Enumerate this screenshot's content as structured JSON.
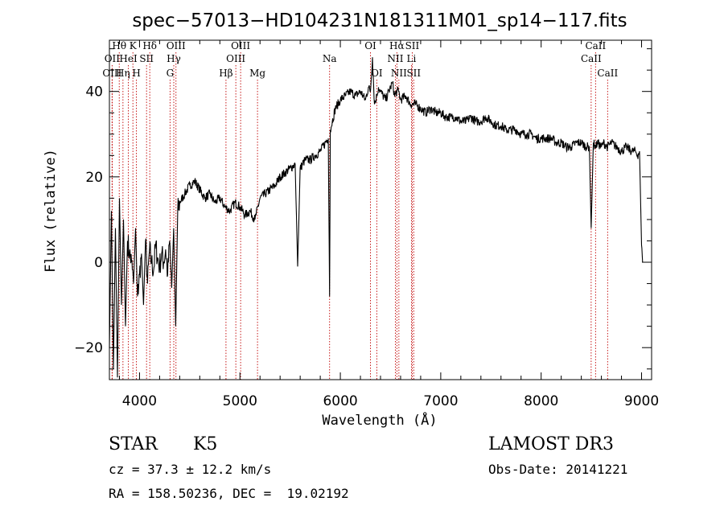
{
  "chart_data": {
    "type": "line",
    "title": "spec−57013−HD104231N181311M01_sp14−117.fits",
    "xlabel": "Wavelength (Å)",
    "ylabel": "Flux (relative)",
    "xlim": [
      3700,
      9100
    ],
    "ylim": [
      -27.5,
      52
    ],
    "xticks": [
      4000,
      5000,
      6000,
      7000,
      8000,
      9000
    ],
    "yticks": [
      -20,
      0,
      20,
      40
    ],
    "grid": false,
    "series": [
      {
        "x": [
          3700,
          3720,
          3740,
          3760,
          3780,
          3800,
          3820,
          3840,
          3860,
          3880,
          3900,
          3920,
          3940,
          3960,
          3980,
          4000,
          4020,
          4040,
          4060,
          4080,
          4100,
          4120,
          4140,
          4160,
          4180,
          4200,
          4220,
          4240,
          4260,
          4280,
          4300,
          4320,
          4340,
          4360,
          4380,
          4400,
          4450,
          4500,
          4550,
          4600,
          4650,
          4700,
          4750,
          4800,
          4850,
          4900,
          4950,
          5000,
          5050,
          5100,
          5150,
          5200,
          5250,
          5300,
          5350,
          5400,
          5450,
          5500,
          5550,
          5575,
          5600,
          5650,
          5700,
          5750,
          5800,
          5850,
          5880,
          5893,
          5900,
          5920,
          5950,
          6000,
          6050,
          6100,
          6150,
          6200,
          6250,
          6280,
          6300,
          6320,
          6340,
          6363,
          6380,
          6400,
          6450,
          6500,
          6520,
          6540,
          6563,
          6580,
          6600,
          6650,
          6700,
          6750,
          6800,
          6850,
          6900,
          6950,
          7000,
          7050,
          7100,
          7150,
          7200,
          7250,
          7300,
          7350,
          7400,
          7450,
          7500,
          7550,
          7600,
          7650,
          7700,
          7750,
          7800,
          7850,
          7900,
          7950,
          8000,
          8050,
          8100,
          8150,
          8200,
          8250,
          8300,
          8350,
          8400,
          8450,
          8480,
          8498,
          8520,
          8542,
          8560,
          8600,
          8620,
          8662,
          8700,
          8750,
          8800,
          8850,
          8900,
          8940,
          8960,
          8980,
          9000,
          9010
        ],
        "y": [
          -20,
          12,
          -25,
          8,
          -27,
          15,
          -10,
          10,
          -15,
          5,
          2,
          0,
          -5,
          8,
          -8,
          -3,
          2,
          -10,
          5,
          -5,
          3,
          0,
          -2,
          4,
          1,
          -1,
          2,
          0,
          3,
          -3,
          5,
          -6,
          8,
          -15,
          12,
          14,
          16,
          18,
          19,
          17,
          15,
          16,
          14,
          15,
          13,
          12,
          14,
          13,
          11,
          12,
          10,
          15,
          16,
          17,
          18,
          20,
          21,
          22,
          23,
          -1,
          22,
          24,
          24,
          25,
          26,
          28,
          29,
          -8,
          31,
          33,
          36,
          38,
          39,
          40,
          39,
          40,
          38,
          41,
          40,
          48,
          37,
          39,
          41,
          40,
          38,
          41,
          42,
          39,
          40,
          40,
          38,
          39,
          37,
          37,
          36,
          35,
          36,
          35,
          35,
          34,
          34,
          34,
          33,
          33,
          34,
          33,
          33,
          34,
          33,
          32,
          32,
          31,
          31,
          31,
          30,
          30,
          30,
          29,
          29,
          29,
          29,
          28,
          28,
          27,
          27,
          28,
          28,
          27,
          27,
          8,
          28,
          27,
          28,
          27,
          28,
          27,
          28,
          27,
          26,
          27,
          26,
          26,
          25,
          26,
          4,
          0
        ]
      }
    ],
    "lines": [
      {
        "label": "Hθ",
        "x": 3798,
        "row": 1
      },
      {
        "label": "OII",
        "x": 3727,
        "row": 2
      },
      {
        "label": "OIII",
        "x": 3727,
        "row": 3
      },
      {
        "label": "Hη",
        "x": 3835,
        "row": 3
      },
      {
        "label": "K",
        "x": 3934,
        "row": 1
      },
      {
        "label": "HeI",
        "x": 3889,
        "row": 2
      },
      {
        "label": "H",
        "x": 3969,
        "row": 3
      },
      {
        "label": "SII",
        "x": 4070,
        "row": 2
      },
      {
        "label": "Hδ",
        "x": 4102,
        "row": 1
      },
      {
        "label": "OIII",
        "x": 4363,
        "row": 1
      },
      {
        "label": "Hγ",
        "x": 4341,
        "row": 2
      },
      {
        "label": "G",
        "x": 4304,
        "row": 3
      },
      {
        "label": "Hβ",
        "x": 4861,
        "row": 3
      },
      {
        "label": "OIII",
        "x": 5007,
        "row": 1
      },
      {
        "label": "OIII",
        "x": 4959,
        "row": 2
      },
      {
        "label": "Mg",
        "x": 5175,
        "row": 3
      },
      {
        "label": "Na",
        "x": 5893,
        "row": 2
      },
      {
        "label": "OI",
        "x": 6300,
        "row": 1
      },
      {
        "label": "OI",
        "x": 6363,
        "row": 3
      },
      {
        "label": "Hα",
        "x": 6563,
        "row": 1
      },
      {
        "label": "SII",
        "x": 6716,
        "row": 1
      },
      {
        "label": "NII",
        "x": 6548,
        "row": 2
      },
      {
        "label": "Li",
        "x": 6708,
        "row": 2
      },
      {
        "label": "NII",
        "x": 6583,
        "row": 3
      },
      {
        "label": "SII",
        "x": 6731,
        "row": 3
      },
      {
        "label": "CaII",
        "x": 8542,
        "row": 1
      },
      {
        "label": "CaII",
        "x": 8498,
        "row": 2
      },
      {
        "label": "CaII",
        "x": 8662,
        "row": 3
      }
    ]
  },
  "info": {
    "class": "STAR",
    "subclass": "K5",
    "survey": "LAMOST DR3",
    "cz": "cz = 37.3 ± 12.2 km/s",
    "obs_date": "Obs-Date: 20141221",
    "radec": "RA = 158.50236, DEC =  19.02192"
  }
}
